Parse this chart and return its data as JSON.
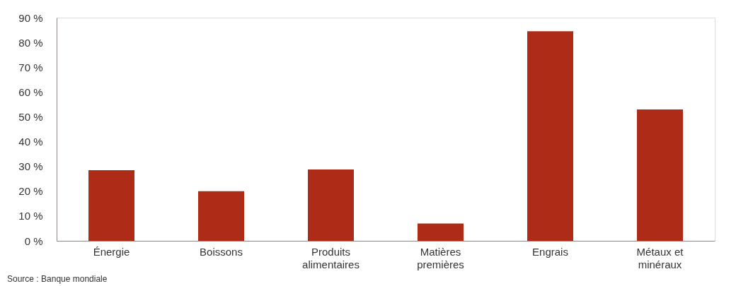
{
  "chart_data": {
    "type": "bar",
    "categories": [
      "Énergie",
      "Boissons",
      "Produits\nalimentaires",
      "Matières\npremières",
      "Engrais",
      "Métaux et\nminéraux"
    ],
    "values": [
      28.5,
      20,
      28.8,
      7,
      84.5,
      53
    ],
    "color": "#ae2c17",
    "ylim": [
      0,
      90
    ],
    "yticks": [
      {
        "value": 0,
        "label": "0 %"
      },
      {
        "value": 10,
        "label": "10 %"
      },
      {
        "value": 20,
        "label": "20 %"
      },
      {
        "value": 30,
        "label": "30 %"
      },
      {
        "value": 40,
        "label": "40 %"
      },
      {
        "value": 50,
        "label": "50 %"
      },
      {
        "value": 60,
        "label": "60 %"
      },
      {
        "value": 70,
        "label": "70 %"
      },
      {
        "value": 80,
        "label": "80 %"
      },
      {
        "value": 90,
        "label": "90 %"
      }
    ],
    "grid": false,
    "annotations": [
      "Source : Banque mondiale"
    ]
  }
}
